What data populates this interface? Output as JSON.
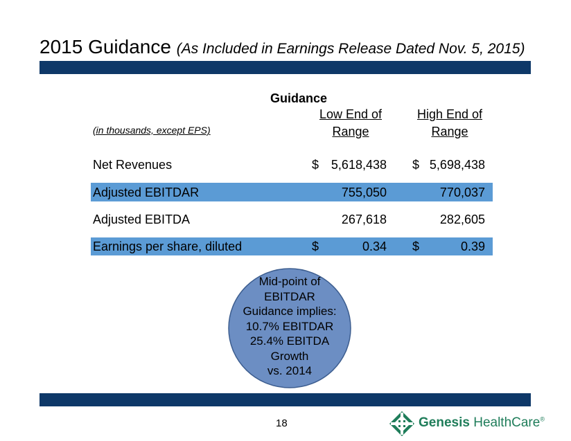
{
  "header": {
    "title": "2015 Guidance",
    "subtitle": "(As Included in Earnings Release Dated Nov. 5, 2015)"
  },
  "table": {
    "group_header": "Guidance",
    "units_note": "(in thousands, except EPS)",
    "columns": [
      [
        "Low End of",
        "Range"
      ],
      [
        "High End of",
        "Range"
      ]
    ],
    "rows": [
      {
        "label": "Net Revenues",
        "low_currency": "$",
        "low": "5,618,438",
        "high_currency": "$",
        "high": "5,698,438"
      },
      {
        "label": "Adjusted EBITDAR",
        "low": "755,050",
        "high": "770,037"
      },
      {
        "label": "Adjusted EBITDA",
        "low": "267,618",
        "high": "282,605"
      },
      {
        "label": "Earnings per share, diluted",
        "low_currency": "$",
        "low": "0.34",
        "high_currency": "$",
        "high": "0.39"
      }
    ]
  },
  "callout": {
    "lines": [
      "Mid-point of",
      "EBITDAR",
      "Guidance implies:",
      "10.7% EBITDAR",
      "25.4% EBITDA",
      "Growth",
      "vs. 2014"
    ]
  },
  "footer": {
    "page_number": "18",
    "logo": {
      "name": "Genesis",
      "suffix": "HealthCare",
      "mark": "®"
    }
  }
}
